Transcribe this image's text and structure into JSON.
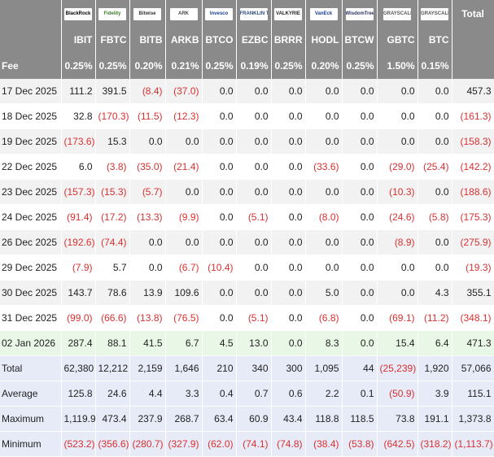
{
  "header": {
    "logos": [
      "BlackRock",
      "Fidelity",
      "Bitwise",
      "ARK",
      "Invesco",
      "FRANKLIN TEMPLETON",
      "VALKYRIE",
      "VanEck",
      "WisdomTree",
      "GRAYSCALE",
      "GRAYSCALE"
    ],
    "total": "Total",
    "tickers": [
      "IBIT",
      "FBTC",
      "BITB",
      "ARKB",
      "BTCO",
      "EZBC",
      "BRRR",
      "HODL",
      "BTCW",
      "GBTC",
      "BTC"
    ],
    "fee_label": "Fee",
    "fees": [
      "0.25%",
      "0.25%",
      "0.20%",
      "0.21%",
      "0.25%",
      "0.19%",
      "0.25%",
      "0.20%",
      "0.25%",
      "1.50%",
      "0.15%"
    ]
  },
  "rows": [
    {
      "date": "17 Dec 2025",
      "values": [
        "111.2",
        "391.5",
        "(8.4)",
        "(37.0)",
        "0.0",
        "0.0",
        "0.0",
        "0.0",
        "0.0",
        "0.0",
        "0.0",
        "457.3"
      ]
    },
    {
      "date": "18 Dec 2025",
      "values": [
        "32.8",
        "(170.3)",
        "(11.5)",
        "(12.3)",
        "0.0",
        "0.0",
        "0.0",
        "0.0",
        "0.0",
        "0.0",
        "0.0",
        "(161.3)"
      ]
    },
    {
      "date": "19 Dec 2025",
      "values": [
        "(173.6)",
        "15.3",
        "0.0",
        "0.0",
        "0.0",
        "0.0",
        "0.0",
        "0.0",
        "0.0",
        "0.0",
        "0.0",
        "(158.3)"
      ]
    },
    {
      "date": "22 Dec 2025",
      "values": [
        "6.0",
        "(3.8)",
        "(35.0)",
        "(21.4)",
        "0.0",
        "0.0",
        "0.0",
        "(33.6)",
        "0.0",
        "(29.0)",
        "(25.4)",
        "(142.2)"
      ]
    },
    {
      "date": "23 Dec 2025",
      "values": [
        "(157.3)",
        "(15.3)",
        "(5.7)",
        "0.0",
        "0.0",
        "0.0",
        "0.0",
        "0.0",
        "0.0",
        "(10.3)",
        "0.0",
        "(188.6)"
      ]
    },
    {
      "date": "24 Dec 2025",
      "values": [
        "(91.4)",
        "(17.2)",
        "(13.3)",
        "(9.9)",
        "0.0",
        "(5.1)",
        "0.0",
        "(8.0)",
        "0.0",
        "(24.6)",
        "(5.8)",
        "(175.3)"
      ]
    },
    {
      "date": "26 Dec 2025",
      "values": [
        "(192.6)",
        "(74.4)",
        "0.0",
        "0.0",
        "0.0",
        "0.0",
        "0.0",
        "0.0",
        "0.0",
        "(8.9)",
        "0.0",
        "(275.9)"
      ]
    },
    {
      "date": "29 Dec 2025",
      "values": [
        "(7.9)",
        "5.7",
        "0.0",
        "(6.7)",
        "(10.4)",
        "0.0",
        "0.0",
        "0.0",
        "0.0",
        "0.0",
        "0.0",
        "(19.3)"
      ]
    },
    {
      "date": "30 Dec 2025",
      "values": [
        "143.7",
        "78.6",
        "13.9",
        "109.6",
        "0.0",
        "0.0",
        "0.0",
        "5.0",
        "0.0",
        "0.0",
        "4.3",
        "355.1"
      ]
    },
    {
      "date": "31 Dec 2025",
      "values": [
        "(99.0)",
        "(66.6)",
        "(13.8)",
        "(76.5)",
        "0.0",
        "(5.1)",
        "0.0",
        "(6.8)",
        "0.0",
        "(69.1)",
        "(11.2)",
        "(348.1)"
      ]
    },
    {
      "date": "02 Jan 2026",
      "values": [
        "287.4",
        "88.1",
        "41.5",
        "6.7",
        "4.5",
        "13.0",
        "0.0",
        "8.3",
        "0.0",
        "15.4",
        "6.4",
        "471.3"
      ]
    }
  ],
  "summary": [
    {
      "label": "Total",
      "values": [
        "62,380",
        "12,212",
        "2,159",
        "1,646",
        "210",
        "340",
        "300",
        "1,095",
        "44",
        "(25,239)",
        "1,920",
        "57,066"
      ]
    },
    {
      "label": "Average",
      "values": [
        "125.8",
        "24.6",
        "4.4",
        "3.3",
        "0.4",
        "0.7",
        "0.6",
        "2.2",
        "0.1",
        "(50.9)",
        "3.9",
        "115.1"
      ]
    },
    {
      "label": "Maximum",
      "values": [
        "1,119.9",
        "473.4",
        "237.9",
        "268.7",
        "63.4",
        "60.9",
        "43.4",
        "118.8",
        "118.5",
        "73.8",
        "191.1",
        "1,373.8"
      ]
    },
    {
      "label": "Minimum",
      "values": [
        "(523.2)",
        "(356.6)",
        "(280.7)",
        "(327.9)",
        "(62.0)",
        "(74.1)",
        "(74.8)",
        "(38.4)",
        "(53.8)",
        "(642.5)",
        "(318.2)",
        "(1,113.7)"
      ]
    }
  ]
}
